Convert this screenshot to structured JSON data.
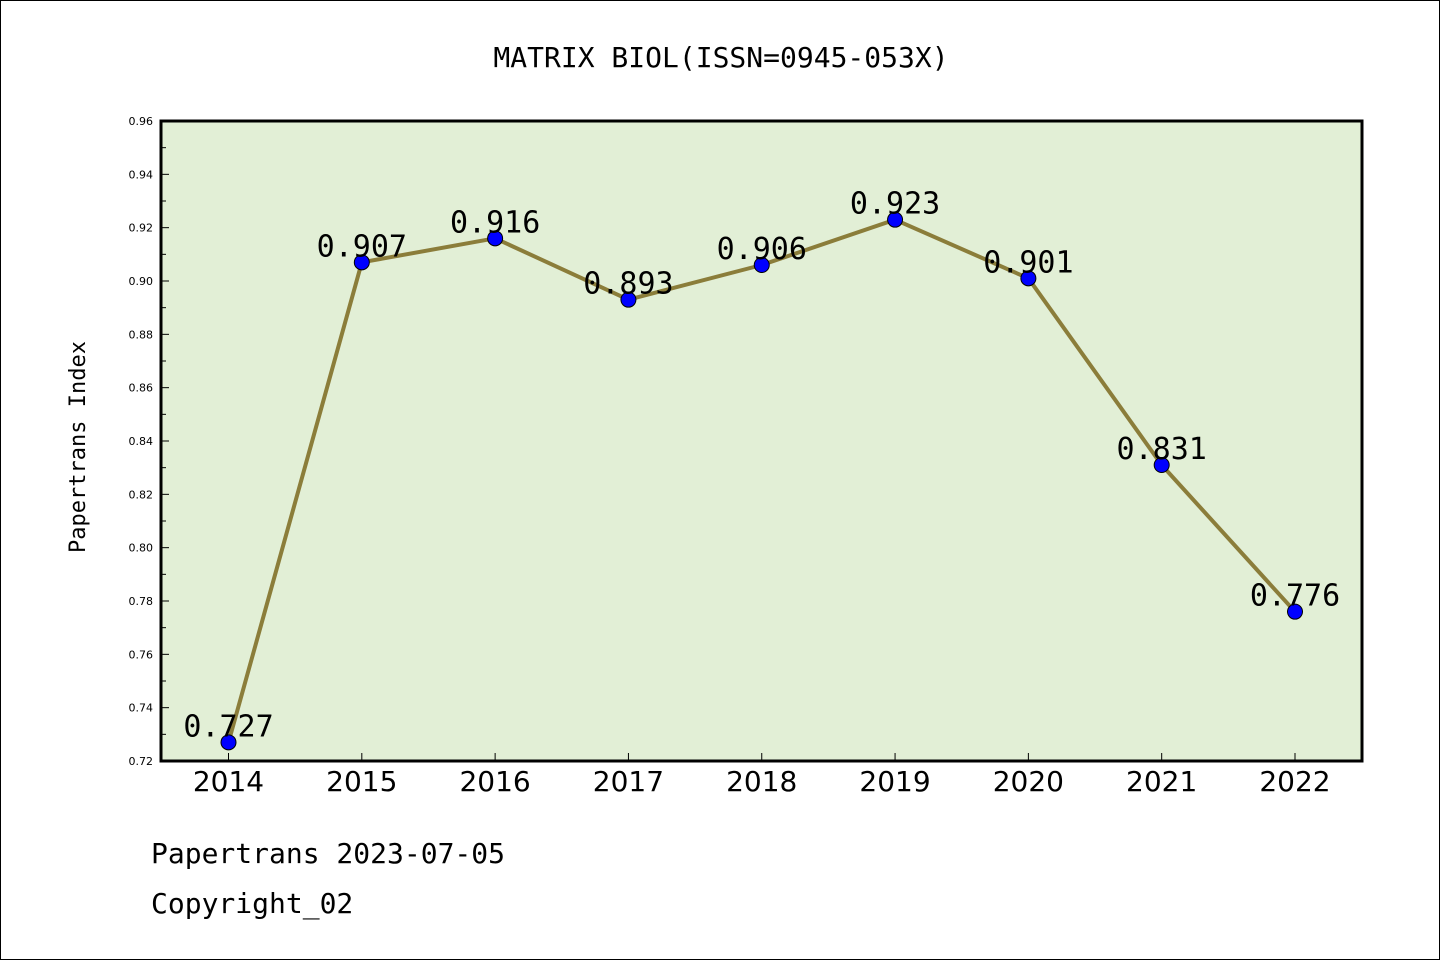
{
  "chart_data": {
    "type": "line",
    "title": "MATRIX BIOL(ISSN=0945-053X)",
    "xlabel": "",
    "ylabel": "Papertrans Index",
    "categories": [
      "2014",
      "2015",
      "2016",
      "2017",
      "2018",
      "2019",
      "2020",
      "2021",
      "2022"
    ],
    "series": [
      {
        "values": [
          0.727,
          0.907,
          0.916,
          0.893,
          0.906,
          0.923,
          0.901,
          0.831,
          0.776
        ]
      }
    ],
    "data_labels": [
      "0.727",
      "0.907",
      "0.916",
      "0.893",
      "0.906",
      "0.923",
      "0.901",
      "0.831",
      "0.776"
    ],
    "ylim": [
      0.72,
      0.96
    ],
    "yticks": [
      "0.72",
      "0.74",
      "0.76",
      "0.78",
      "0.80",
      "0.82",
      "0.84",
      "0.86",
      "0.88",
      "0.90",
      "0.92",
      "0.94",
      "0.96"
    ],
    "grid": false,
    "colors": {
      "plot_background": "#e2efd6",
      "line": "#8b7d3a",
      "marker": "#0000ff"
    }
  },
  "footer": {
    "date_text": "Papertrans 2023-07-05",
    "copyright_text": "Copyright_02"
  }
}
